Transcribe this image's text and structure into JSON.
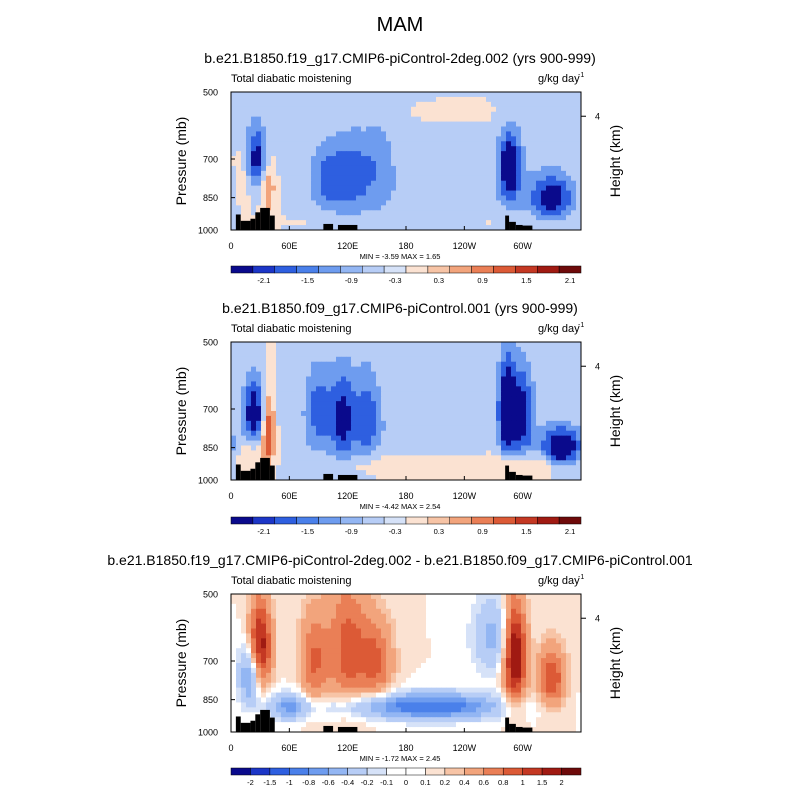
{
  "figure": {
    "title": "MAM"
  },
  "chart_data": [
    {
      "type": "heatmap",
      "title": "b.e21.B1850.f19_g17.CMIP6-piControl-2deg.002 (yrs 900-999)",
      "left_label": "Total diabatic moistening",
      "units": "g/kg day",
      "units_exponent": "-1",
      "ylabel": "Pressure (mb)",
      "ylabel_right": "Height (km)",
      "x_ticks": [
        "0",
        "60E",
        "120E",
        "180",
        "120W",
        "60W"
      ],
      "x_tick_values": [
        0,
        60,
        120,
        180,
        240,
        300
      ],
      "xlim": [
        0,
        360
      ],
      "y_ticks": [
        "500",
        "700",
        "850",
        "1000"
      ],
      "y_tick_values": [
        500,
        700,
        850,
        1000
      ],
      "ylim": [
        1000,
        500
      ],
      "right_ticks": [
        "4"
      ],
      "right_tick_values": [
        4
      ],
      "stats": "MIN = -3.59  MAX =  1.65",
      "colorbar_levels": [
        "-2.1",
        "-1.5",
        "-0.9",
        "-0.3",
        "0.3",
        "0.9",
        "1.5",
        "2.1"
      ],
      "field": "control"
    },
    {
      "type": "heatmap",
      "title": "b.e21.B1850.f09_g17.CMIP6-piControl.001 (yrs 900-999)",
      "left_label": "Total diabatic moistening",
      "units": "g/kg day",
      "units_exponent": "-1",
      "ylabel": "Pressure (mb)",
      "ylabel_right": "Height (km)",
      "x_ticks": [
        "0",
        "60E",
        "120E",
        "180",
        "120W",
        "60W"
      ],
      "x_tick_values": [
        0,
        60,
        120,
        180,
        240,
        300
      ],
      "xlim": [
        0,
        360
      ],
      "y_ticks": [
        "500",
        "700",
        "850",
        "1000"
      ],
      "y_tick_values": [
        500,
        700,
        850,
        1000
      ],
      "ylim": [
        1000,
        500
      ],
      "right_ticks": [
        "4"
      ],
      "right_tick_values": [
        4
      ],
      "stats": "MIN = -4.42  MAX =  2.54",
      "colorbar_levels": [
        "-2.1",
        "-1.5",
        "-0.9",
        "-0.3",
        "0.3",
        "0.9",
        "1.5",
        "2.1"
      ],
      "field": "test"
    },
    {
      "type": "heatmap",
      "title": "b.e21.B1850.f19_g17.CMIP6-piControl-2deg.002 - b.e21.B1850.f09_g17.CMIP6-piControl.001",
      "left_label": "Total diabatic moistening",
      "units": "g/kg day",
      "units_exponent": "-1",
      "ylabel": "Pressure (mb)",
      "ylabel_right": "Height (km)",
      "x_ticks": [
        "0",
        "60E",
        "120E",
        "180",
        "120W",
        "60W"
      ],
      "x_tick_values": [
        0,
        60,
        120,
        180,
        240,
        300
      ],
      "xlim": [
        0,
        360
      ],
      "y_ticks": [
        "500",
        "700",
        "850",
        "1000"
      ],
      "y_tick_values": [
        500,
        700,
        850,
        1000
      ],
      "ylim": [
        1000,
        500
      ],
      "right_ticks": [
        "4"
      ],
      "right_tick_values": [
        4
      ],
      "stats": "MIN = -1.72  MAX =  2.45",
      "colorbar_levels": [
        "-2",
        "-1.5",
        "-1",
        "-0.8",
        "-0.6",
        "-0.4",
        "-0.2",
        "-0.1",
        "0",
        "0.1",
        "0.2",
        "0.4",
        "0.6",
        "0.8",
        "1",
        "1.5",
        "2"
      ],
      "field": "diff"
    }
  ],
  "colormap": [
    "#0a0a8c",
    "#1c36c7",
    "#2e5fe0",
    "#4a80ea",
    "#6e9cef",
    "#93b6f3",
    "#b7cdf6",
    "#d6e2f8",
    "#ffffff",
    "#fbe2d2",
    "#f7c4a6",
    "#f2a47c",
    "#ea7f56",
    "#dc5a36",
    "#c43823",
    "#a01a12",
    "#6e0a0a"
  ],
  "terrain": [
    {
      "lon0": 5,
      "lon1": 10,
      "p": 925
    },
    {
      "lon0": 10,
      "lon1": 20,
      "p": 955
    },
    {
      "lon0": 20,
      "lon1": 25,
      "p": 945
    },
    {
      "lon0": 25,
      "lon1": 30,
      "p": 915
    },
    {
      "lon0": 30,
      "lon1": 40,
      "p": 895
    },
    {
      "lon0": 40,
      "lon1": 45,
      "p": 930
    },
    {
      "lon0": 95,
      "lon1": 105,
      "p": 970
    },
    {
      "lon0": 110,
      "lon1": 130,
      "p": 975
    },
    {
      "lon0": 282,
      "lon1": 286,
      "p": 930
    },
    {
      "lon0": 286,
      "lon1": 293,
      "p": 960
    },
    {
      "lon0": 293,
      "lon1": 300,
      "p": 975
    },
    {
      "lon0": 300,
      "lon1": 310,
      "p": 978
    }
  ],
  "blobs": {
    "control": [
      {
        "lon": 26,
        "p": 700,
        "w": 9,
        "h": 80,
        "a": -2.2
      },
      {
        "lon": 38,
        "p": 800,
        "w": 6,
        "h": 90,
        "a": 1.4
      },
      {
        "lon": 14,
        "p": 760,
        "w": 7,
        "h": 90,
        "a": 0.8
      },
      {
        "lon": 100,
        "p": 770,
        "w": 12,
        "h": 90,
        "a": -1.2
      },
      {
        "lon": 125,
        "p": 760,
        "w": 12,
        "h": 100,
        "a": -1.2
      },
      {
        "lon": 150,
        "p": 720,
        "w": 10,
        "h": 120,
        "a": -0.6
      },
      {
        "lon": 287,
        "p": 730,
        "w": 8,
        "h": 90,
        "a": -2.6
      },
      {
        "lon": 330,
        "p": 850,
        "w": 16,
        "h": 70,
        "a": -2.2
      },
      {
        "lon": 180,
        "p": 800,
        "w": 90,
        "h": 200,
        "a": -0.5
      },
      {
        "lon": 180,
        "p": 960,
        "w": 120,
        "h": 30,
        "a": 0.3
      },
      {
        "lon": 220,
        "p": 560,
        "w": 50,
        "h": 40,
        "a": 0.3
      }
    ],
    "test": [
      {
        "lon": 24,
        "p": 720,
        "w": 8,
        "h": 90,
        "a": -2.4
      },
      {
        "lon": 38,
        "p": 780,
        "w": 5,
        "h": 110,
        "a": 2.0
      },
      {
        "lon": 20,
        "p": 880,
        "w": 10,
        "h": 60,
        "a": 1.0
      },
      {
        "lon": 90,
        "p": 700,
        "w": 10,
        "h": 110,
        "a": -1.3
      },
      {
        "lon": 115,
        "p": 730,
        "w": 9,
        "h": 120,
        "a": -1.8
      },
      {
        "lon": 140,
        "p": 730,
        "w": 9,
        "h": 120,
        "a": -1.3
      },
      {
        "lon": 284,
        "p": 700,
        "w": 6,
        "h": 120,
        "a": -3.0
      },
      {
        "lon": 300,
        "p": 720,
        "w": 8,
        "h": 120,
        "a": -2.0
      },
      {
        "lon": 340,
        "p": 850,
        "w": 14,
        "h": 60,
        "a": -2.8
      },
      {
        "lon": 180,
        "p": 930,
        "w": 50,
        "h": 40,
        "a": 0.8
      },
      {
        "lon": 300,
        "p": 930,
        "w": 30,
        "h": 40,
        "a": 1.0
      },
      {
        "lon": 180,
        "p": 780,
        "w": 100,
        "h": 160,
        "a": -0.4
      }
    ],
    "diff": [
      {
        "lon": 30,
        "p": 650,
        "w": 8,
        "h": 100,
        "a": 1.2
      },
      {
        "lon": 20,
        "p": 750,
        "w": 8,
        "h": 80,
        "a": -0.8
      },
      {
        "lon": 85,
        "p": 700,
        "w": 10,
        "h": 120,
        "a": 0.6
      },
      {
        "lon": 120,
        "p": 660,
        "w": 15,
        "h": 150,
        "a": 0.7
      },
      {
        "lon": 150,
        "p": 700,
        "w": 12,
        "h": 100,
        "a": 0.6
      },
      {
        "lon": 180,
        "p": 880,
        "w": 60,
        "h": 40,
        "a": -0.6
      },
      {
        "lon": 220,
        "p": 880,
        "w": 40,
        "h": 40,
        "a": -0.5
      },
      {
        "lon": 292,
        "p": 680,
        "w": 8,
        "h": 120,
        "a": 1.4
      },
      {
        "lon": 330,
        "p": 760,
        "w": 10,
        "h": 80,
        "a": 0.8
      },
      {
        "lon": 270,
        "p": 620,
        "w": 15,
        "h": 80,
        "a": -0.5
      },
      {
        "lon": 60,
        "p": 880,
        "w": 15,
        "h": 40,
        "a": -0.6
      }
    ]
  }
}
